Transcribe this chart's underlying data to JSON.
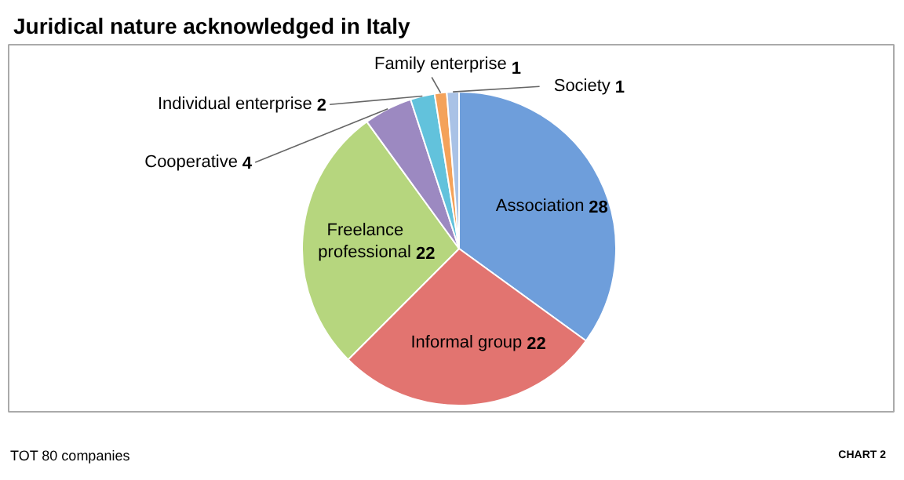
{
  "chart_data": {
    "type": "pie",
    "title": "Juridical nature acknowledged in Italy",
    "categories": [
      "Association",
      "Informal group",
      "Freelance professional",
      "Cooperative",
      "Individual enterprise",
      "Family enterprise",
      "Society"
    ],
    "values": [
      28,
      22,
      22,
      4,
      2,
      1,
      1
    ],
    "colors": [
      "#6e9edb",
      "#e27470",
      "#b6d67e",
      "#9c89c1",
      "#62c2dc",
      "#f4a25a",
      "#a9c2e6"
    ],
    "data_labels": true,
    "annotations": [
      "TOT 80 companies",
      "CHART 2"
    ]
  }
}
